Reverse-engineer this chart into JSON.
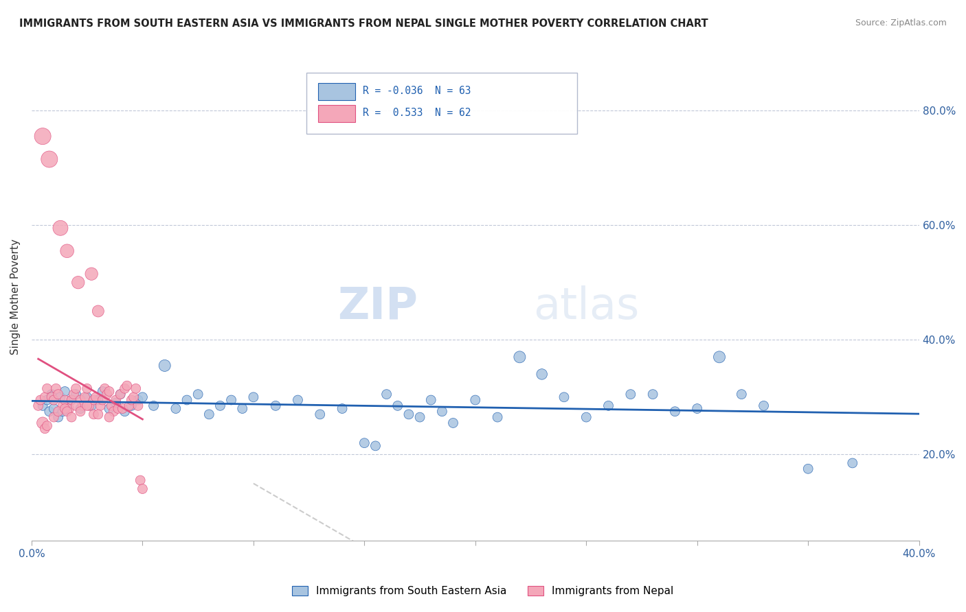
{
  "title": "IMMIGRANTS FROM SOUTH EASTERN ASIA VS IMMIGRANTS FROM NEPAL SINGLE MOTHER POVERTY CORRELATION CHART",
  "source": "Source: ZipAtlas.com",
  "ylabel": "Single Mother Poverty",
  "legend_label1": "Immigrants from South Eastern Asia",
  "legend_label2": "Immigrants from Nepal",
  "r1": "-0.036",
  "n1": "63",
  "r2": "0.533",
  "n2": "62",
  "color1": "#a8c4e0",
  "color2": "#f4a7b9",
  "line_color1": "#2060b0",
  "line_color2": "#e05080",
  "watermark_zip": "ZIP",
  "watermark_atlas": "atlas",
  "background": "#ffffff",
  "xlim": [
    0.0,
    0.4
  ],
  "ylim": [
    0.05,
    0.9
  ],
  "blue_dots": [
    [
      0.005,
      0.285
    ],
    [
      0.007,
      0.295
    ],
    [
      0.008,
      0.275
    ],
    [
      0.009,
      0.305
    ],
    [
      0.01,
      0.28
    ],
    [
      0.012,
      0.265
    ],
    [
      0.013,
      0.3
    ],
    [
      0.014,
      0.275
    ],
    [
      0.015,
      0.31
    ],
    [
      0.016,
      0.285
    ],
    [
      0.018,
      0.295
    ],
    [
      0.02,
      0.305
    ],
    [
      0.022,
      0.28
    ],
    [
      0.025,
      0.3
    ],
    [
      0.027,
      0.285
    ],
    [
      0.03,
      0.295
    ],
    [
      0.032,
      0.31
    ],
    [
      0.035,
      0.28
    ],
    [
      0.038,
      0.29
    ],
    [
      0.04,
      0.305
    ],
    [
      0.042,
      0.275
    ],
    [
      0.045,
      0.285
    ],
    [
      0.048,
      0.295
    ],
    [
      0.05,
      0.3
    ],
    [
      0.055,
      0.285
    ],
    [
      0.06,
      0.355
    ],
    [
      0.065,
      0.28
    ],
    [
      0.07,
      0.295
    ],
    [
      0.075,
      0.305
    ],
    [
      0.08,
      0.27
    ],
    [
      0.085,
      0.285
    ],
    [
      0.09,
      0.295
    ],
    [
      0.095,
      0.28
    ],
    [
      0.1,
      0.3
    ],
    [
      0.11,
      0.285
    ],
    [
      0.12,
      0.295
    ],
    [
      0.13,
      0.27
    ],
    [
      0.14,
      0.28
    ],
    [
      0.15,
      0.22
    ],
    [
      0.155,
      0.215
    ],
    [
      0.16,
      0.305
    ],
    [
      0.165,
      0.285
    ],
    [
      0.17,
      0.27
    ],
    [
      0.175,
      0.265
    ],
    [
      0.18,
      0.295
    ],
    [
      0.185,
      0.275
    ],
    [
      0.19,
      0.255
    ],
    [
      0.2,
      0.295
    ],
    [
      0.21,
      0.265
    ],
    [
      0.22,
      0.37
    ],
    [
      0.23,
      0.34
    ],
    [
      0.24,
      0.3
    ],
    [
      0.25,
      0.265
    ],
    [
      0.26,
      0.285
    ],
    [
      0.27,
      0.305
    ],
    [
      0.28,
      0.305
    ],
    [
      0.29,
      0.275
    ],
    [
      0.3,
      0.28
    ],
    [
      0.31,
      0.37
    ],
    [
      0.32,
      0.305
    ],
    [
      0.33,
      0.285
    ],
    [
      0.35,
      0.175
    ],
    [
      0.37,
      0.185
    ]
  ],
  "blue_sizes": [
    20,
    20,
    20,
    20,
    20,
    20,
    20,
    20,
    20,
    20,
    20,
    20,
    20,
    20,
    20,
    20,
    20,
    20,
    20,
    20,
    20,
    20,
    20,
    20,
    20,
    30,
    20,
    20,
    20,
    20,
    20,
    20,
    20,
    20,
    20,
    20,
    20,
    20,
    20,
    20,
    20,
    20,
    20,
    20,
    20,
    20,
    20,
    20,
    20,
    30,
    25,
    20,
    20,
    20,
    20,
    20,
    20,
    20,
    30,
    20,
    20,
    20,
    20
  ],
  "pink_dots": [
    [
      0.003,
      0.285
    ],
    [
      0.004,
      0.295
    ],
    [
      0.005,
      0.755
    ],
    [
      0.006,
      0.3
    ],
    [
      0.007,
      0.315
    ],
    [
      0.008,
      0.715
    ],
    [
      0.009,
      0.3
    ],
    [
      0.01,
      0.295
    ],
    [
      0.011,
      0.315
    ],
    [
      0.012,
      0.305
    ],
    [
      0.013,
      0.595
    ],
    [
      0.014,
      0.285
    ],
    [
      0.015,
      0.295
    ],
    [
      0.016,
      0.555
    ],
    [
      0.017,
      0.28
    ],
    [
      0.018,
      0.295
    ],
    [
      0.019,
      0.305
    ],
    [
      0.02,
      0.315
    ],
    [
      0.021,
      0.5
    ],
    [
      0.022,
      0.295
    ],
    [
      0.023,
      0.285
    ],
    [
      0.024,
      0.3
    ],
    [
      0.025,
      0.315
    ],
    [
      0.026,
      0.285
    ],
    [
      0.027,
      0.515
    ],
    [
      0.028,
      0.295
    ],
    [
      0.029,
      0.3
    ],
    [
      0.03,
      0.45
    ],
    [
      0.031,
      0.285
    ],
    [
      0.032,
      0.295
    ],
    [
      0.033,
      0.315
    ],
    [
      0.034,
      0.305
    ],
    [
      0.035,
      0.31
    ],
    [
      0.036,
      0.285
    ],
    [
      0.037,
      0.275
    ],
    [
      0.038,
      0.295
    ],
    [
      0.039,
      0.28
    ],
    [
      0.04,
      0.305
    ],
    [
      0.041,
      0.28
    ],
    [
      0.042,
      0.315
    ],
    [
      0.043,
      0.32
    ],
    [
      0.044,
      0.285
    ],
    [
      0.045,
      0.295
    ],
    [
      0.046,
      0.3
    ],
    [
      0.047,
      0.315
    ],
    [
      0.048,
      0.285
    ],
    [
      0.049,
      0.155
    ],
    [
      0.05,
      0.14
    ],
    [
      0.005,
      0.255
    ],
    [
      0.006,
      0.245
    ],
    [
      0.007,
      0.25
    ],
    [
      0.01,
      0.265
    ],
    [
      0.012,
      0.275
    ],
    [
      0.015,
      0.28
    ],
    [
      0.016,
      0.275
    ],
    [
      0.018,
      0.265
    ],
    [
      0.02,
      0.285
    ],
    [
      0.022,
      0.275
    ],
    [
      0.025,
      0.285
    ],
    [
      0.028,
      0.27
    ],
    [
      0.03,
      0.27
    ],
    [
      0.035,
      0.265
    ]
  ],
  "pink_sizes": [
    20,
    20,
    60,
    20,
    20,
    60,
    20,
    20,
    20,
    20,
    50,
    20,
    20,
    40,
    20,
    20,
    20,
    20,
    35,
    20,
    20,
    20,
    20,
    20,
    35,
    20,
    20,
    30,
    20,
    20,
    20,
    20,
    20,
    20,
    20,
    20,
    20,
    20,
    20,
    20,
    20,
    20,
    20,
    20,
    20,
    20,
    20,
    20,
    30,
    20,
    20,
    20,
    20,
    20,
    20,
    20,
    20,
    20,
    20,
    20,
    20,
    20
  ]
}
